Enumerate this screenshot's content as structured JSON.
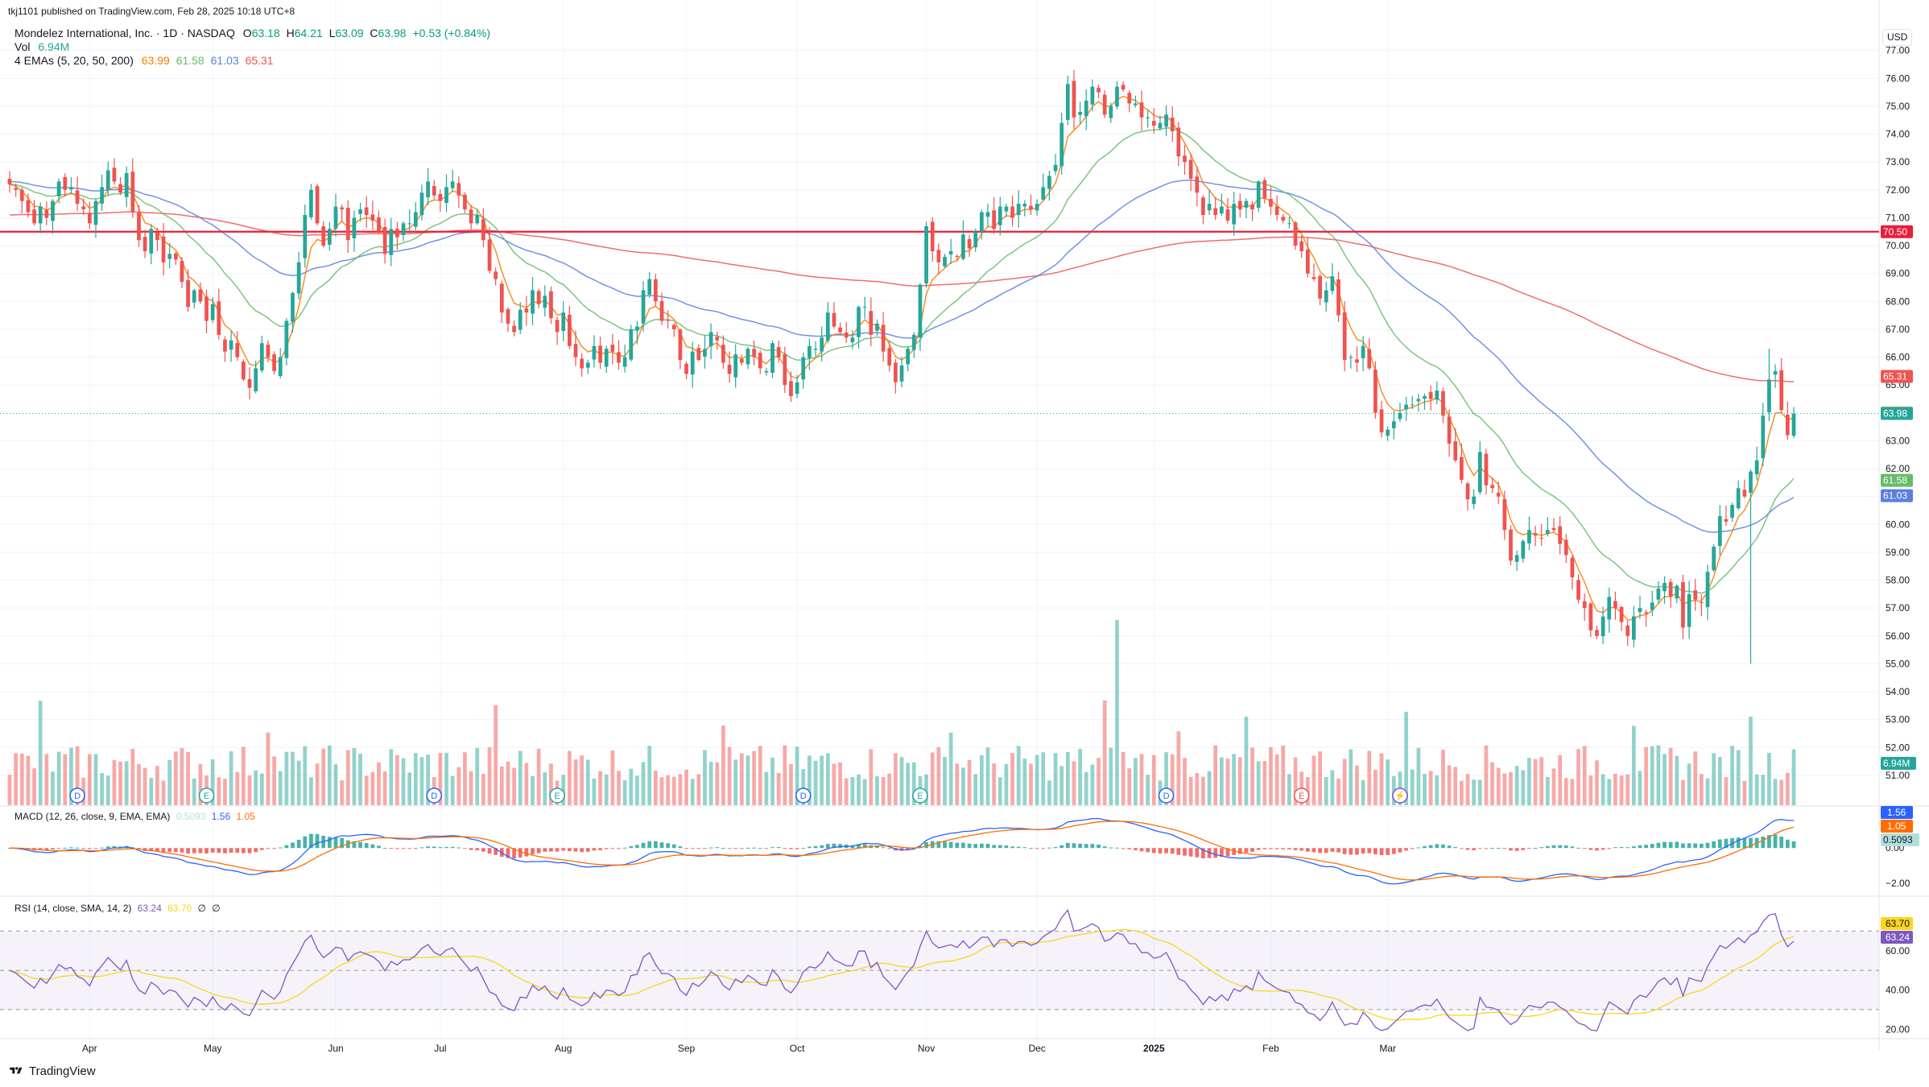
{
  "header": {
    "published_by": "tkj1101 published on TradingView.com, Feb 28, 2025 10:18 UTC+8",
    "symbol_line": "Mondelez International, Inc. · 1D · NASDAQ",
    "ohlc": {
      "o_label": "O",
      "o": "63.18",
      "h_label": "H",
      "h": "64.21",
      "l_label": "L",
      "l": "63.09",
      "c_label": "C",
      "c": "63.98",
      "chg": "+0.53 (+0.84%)"
    },
    "vol_label": "Vol",
    "vol_value": "6.94M",
    "ema_label": "4 EMAs (5, 20, 50, 200)",
    "ema_values": [
      "63.99",
      "61.58",
      "61.03",
      "65.31"
    ],
    "currency": "USD"
  },
  "macd_legend": {
    "label": "MACD (12, 26, close, 9, EMA, EMA)",
    "hist": "0.5093",
    "macd": "1.56",
    "signal": "1.05"
  },
  "rsi_legend": {
    "label": "RSI (14, close, SMA, 14, 2)",
    "rsi": "63.24",
    "sma": "63.70",
    "extra1": "∅",
    "extra2": "∅"
  },
  "footer": {
    "brand": "TradingView"
  },
  "colors": {
    "up": "#26a69a",
    "down": "#ef5350",
    "ema5": "#f57c00",
    "ema20": "#66bb6a",
    "ema50": "#5b7fde",
    "ema200": "#ef5350",
    "hline": "#e91e3a",
    "macd": "#2962ff",
    "signal": "#ff6d00",
    "rsi": "#7e57c2",
    "rsi_sma": "#f9d71c"
  },
  "chart_data": [
    {
      "type": "candlestick",
      "title": "Mondelez International, Inc. · 1D · NASDAQ",
      "ylabel": "USD",
      "ylim": [
        49.9,
        77.8
      ],
      "y_ticks": [
        51,
        52,
        53,
        54,
        55,
        56,
        57,
        58,
        59,
        60,
        61,
        62,
        63,
        65,
        66,
        67,
        68,
        69,
        70,
        71,
        72,
        73,
        74,
        75,
        76,
        77
      ],
      "x_ticks": [
        "Apr",
        "May",
        "Jun",
        "Jul",
        "Aug",
        "Sep",
        "Oct",
        "Nov",
        "Dec",
        "2025",
        "Feb",
        "Mar"
      ],
      "x_tick_index": [
        13,
        33,
        53,
        70,
        90,
        110,
        128,
        149,
        167,
        186,
        205,
        224
      ],
      "horizontal_line": {
        "value": 70.5,
        "label": "70.50"
      },
      "last_price": {
        "value": 63.98,
        "label": "63.98"
      },
      "ema_labels": [
        {
          "value": 65.31,
          "label": "65.31",
          "series": "ema200"
        },
        {
          "value": 63.99,
          "label": "63.99",
          "series": "ema5"
        },
        {
          "value": 61.58,
          "label": "61.58",
          "series": "ema20"
        },
        {
          "value": 61.03,
          "label": "61.03",
          "series": "ema50"
        }
      ],
      "closes": [
        72.2,
        72.0,
        71.6,
        71.2,
        70.8,
        71.4,
        71.0,
        71.6,
        72.3,
        72.0,
        72.1,
        71.5,
        71.3,
        70.8,
        71.6,
        72.1,
        72.7,
        72.3,
        71.9,
        72.6,
        71.2,
        70.2,
        69.8,
        70.6,
        70.2,
        69.4,
        69.7,
        69.5,
        68.7,
        67.8,
        68.4,
        68.0,
        67.3,
        67.9,
        66.8,
        66.2,
        66.6,
        66.0,
        65.2,
        64.9,
        65.6,
        66.5,
        66.0,
        65.5,
        66.0,
        67.3,
        68.3,
        69.4,
        71.1,
        72.0,
        70.8,
        70.0,
        70.6,
        71.4,
        71.3,
        70.2,
        71.0,
        71.3,
        71.1,
        70.9,
        70.5,
        69.7,
        70.6,
        70.3,
        70.8,
        70.8,
        71.2,
        71.9,
        72.3,
        71.8,
        71.6,
        72.1,
        72.3,
        71.8,
        71.3,
        70.8,
        71.1,
        70.2,
        69.1,
        68.8,
        67.6,
        67.2,
        66.9,
        67.7,
        67.6,
        68.4,
        67.9,
        68.2,
        67.4,
        66.9,
        67.6,
        66.4,
        66.0,
        65.6,
        65.8,
        66.4,
        65.8,
        66.3,
        66.2,
        65.8,
        66.0,
        67.0,
        67.1,
        68.4,
        68.8,
        68.0,
        67.3,
        67.3,
        67.0,
        65.9,
        65.4,
        66.2,
        65.9,
        66.3,
        66.9,
        66.6,
        65.8,
        65.4,
        66.1,
        65.8,
        66.3,
        66.0,
        65.6,
        65.5,
        66.5,
        66.0,
        65.0,
        64.6,
        65.1,
        66.0,
        66.4,
        66.3,
        66.7,
        67.6,
        67.1,
        66.9,
        66.7,
        66.7,
        67.8,
        67.8,
        66.8,
        67.2,
        66.2,
        65.7,
        65.1,
        65.7,
        66.3,
        66.8,
        68.6,
        70.7,
        69.8,
        69.4,
        69.6,
        69.8,
        69.6,
        70.4,
        69.9,
        70.5,
        71.2,
        71.2,
        70.6,
        71.4,
        71.4,
        71.0,
        71.5,
        71.5,
        71.3,
        71.5,
        72.1,
        72.5,
        72.9,
        74.4,
        75.8,
        74.6,
        74.8,
        75.2,
        75.7,
        75.5,
        74.7,
        75.0,
        75.7,
        75.6,
        75.1,
        75.1,
        74.6,
        74.6,
        74.3,
        74.4,
        74.7,
        74.1,
        73.2,
        73.0,
        72.4,
        71.9,
        71.1,
        71.5,
        71.1,
        71.4,
        70.9,
        71.5,
        71.3,
        71.6,
        71.3,
        72.3,
        71.7,
        71.4,
        71.1,
        70.9,
        70.8,
        70.0,
        69.8,
        69.0,
        68.8,
        68.1,
        68.4,
        68.9,
        67.5,
        65.9,
        66.0,
        65.8,
        66.4,
        65.6,
        64.0,
        63.3,
        63.4,
        63.7,
        64.0,
        64.3,
        64.3,
        64.5,
        64.6,
        64.5,
        64.8,
        63.9,
        62.9,
        62.3,
        61.6,
        60.9,
        61.0,
        62.6,
        61.4,
        61.3,
        61.0,
        59.8,
        58.7,
        58.9,
        59.4,
        59.8,
        59.6,
        59.5,
        59.8,
        59.8,
        59.3,
        58.9,
        58.1,
        57.3,
        57.0,
        56.2,
        56.0,
        56.7,
        57.4,
        57.0,
        56.5,
        56.0,
        56.7,
        57.0,
        56.8,
        57.2,
        57.7,
        57.9,
        57.4,
        57.8,
        56.3,
        57.5,
        57.3,
        57.2,
        58.3,
        59.2,
        60.3,
        60.1,
        60.7,
        61.3,
        61.0,
        61.9,
        62.3,
        63.9,
        65.2,
        65.5,
        64.1,
        63.2,
        63.98
      ],
      "volume_unit": "M",
      "last_volume": 6.94,
      "macd_ylim": [
        -2.6,
        2.3
      ],
      "macd_ticks": [
        0.0,
        -2.0
      ],
      "rsi_ylim": [
        16,
        87
      ],
      "rsi_ticks": [
        20.0,
        40.0,
        60.0
      ],
      "rsi_band": [
        30,
        70
      ]
    }
  ]
}
